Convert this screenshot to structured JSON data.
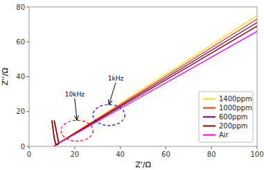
{
  "chart_data": {
    "type": "line",
    "x_label": "Z'/Ω",
    "y_label": "Z''/Ω",
    "xlim": [
      0,
      100
    ],
    "ylim": [
      0,
      80
    ],
    "xticks": [
      0,
      20,
      40,
      60,
      80,
      100
    ],
    "yticks": [
      0,
      20,
      40,
      60,
      80
    ],
    "legend": "lower right",
    "series": [
      {
        "name": "1400ppm",
        "color": "#FFD700",
        "x": [
          11,
          100
        ],
        "values": [
          0.3,
          75
        ]
      },
      {
        "name": "1000ppm",
        "color": "#FF3300",
        "x": [
          11,
          100
        ],
        "values": [
          0.3,
          73
        ]
      },
      {
        "name": "600ppm",
        "color": "#6B006B",
        "x": [
          11,
          100
        ],
        "values": [
          0.3,
          71
        ]
      },
      {
        "name": "200ppm",
        "color": "#8B0000",
        "x": [
          11,
          100
        ],
        "values": [
          0.3,
          69
        ]
      },
      {
        "name": "Air",
        "color": "#FF00FF",
        "x": [
          11,
          100
        ],
        "values": [
          0.3,
          66
        ]
      },
      {
        "color": "#8B0000",
        "x": [
          10,
          10.5,
          11,
          11.5,
          12,
          12.5,
          13,
          11
        ],
        "values": [
          15,
          10,
          5,
          2,
          1,
          1,
          2,
          15
        ]
      }
    ],
    "ellipses": [
      {
        "cx": 21,
        "cy": 9,
        "rx": 7,
        "ry": 6,
        "color": "red",
        "line_style": "dashed"
      },
      {
        "cx": 35,
        "cy": 18,
        "rx": 7,
        "ry": 6,
        "color": "blue",
        "line_style": "dashed"
      }
    ],
    "annotations": [
      {
        "text": "10kHz",
        "x": 20,
        "y": 28,
        "arrow_x": 21,
        "arrow_y": 15
      },
      {
        "text": "1kHz",
        "x": 38,
        "y": 37,
        "arrow_x": 35,
        "arrow_y": 24
      }
    ]
  }
}
